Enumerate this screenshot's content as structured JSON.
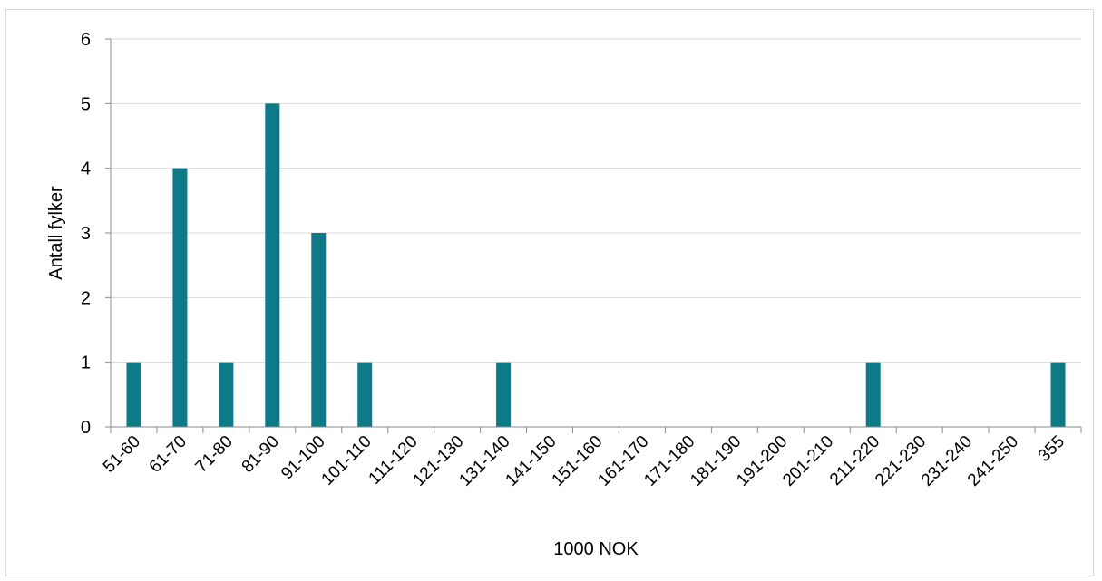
{
  "chart_data": {
    "type": "bar",
    "categories": [
      "51-60",
      "61-70",
      "71-80",
      "81-90",
      "91-100",
      "101-110",
      "111-120",
      "121-130",
      "131-140",
      "141-150",
      "151-160",
      "161-170",
      "171-180",
      "181-190",
      "191-200",
      "201-210",
      "211-220",
      "221-230",
      "231-240",
      "241-250",
      "355"
    ],
    "values": [
      1,
      4,
      1,
      5,
      3,
      1,
      0,
      0,
      1,
      0,
      0,
      0,
      0,
      0,
      0,
      0,
      1,
      0,
      0,
      0,
      1
    ],
    "xlabel": "1000 NOK",
    "ylabel": "Antall fylker",
    "ylim": [
      0,
      6
    ],
    "yticks": [
      0,
      1,
      2,
      3,
      4,
      5,
      6
    ],
    "grid": true,
    "bar_color": "#0e7a87"
  }
}
